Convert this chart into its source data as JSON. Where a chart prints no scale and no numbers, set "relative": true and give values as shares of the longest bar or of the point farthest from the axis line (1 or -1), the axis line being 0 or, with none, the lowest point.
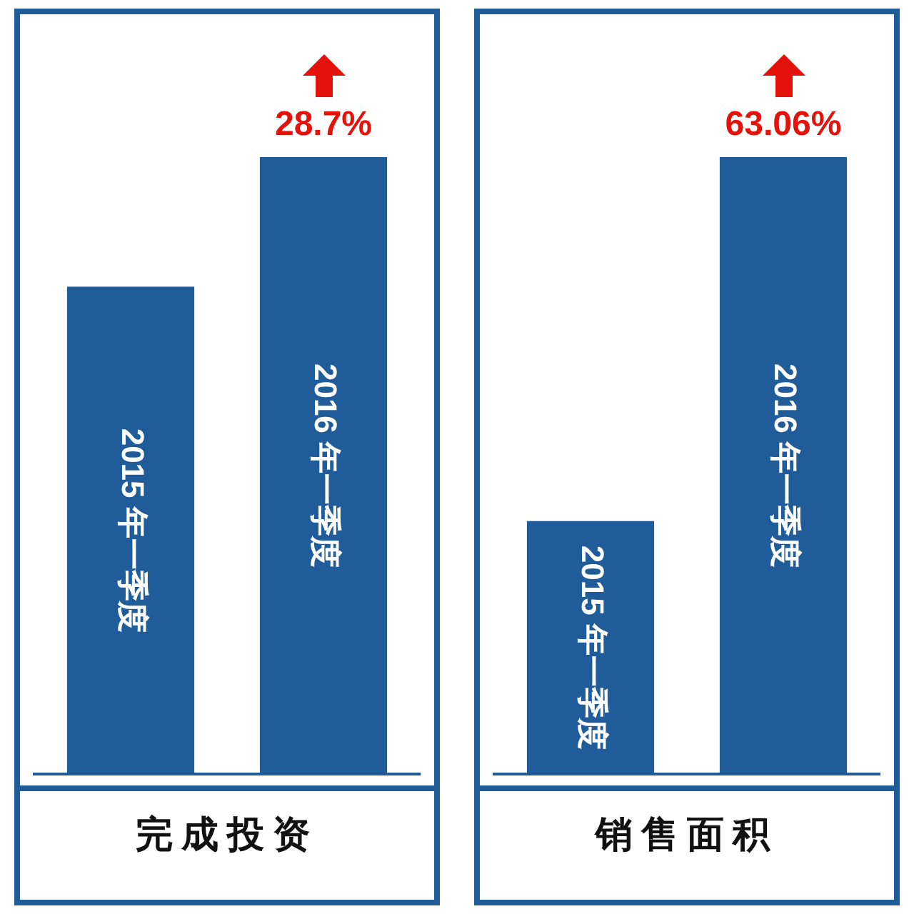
{
  "chart_data": [
    {
      "type": "bar",
      "title": "完成投资",
      "categories": [
        "2015 年一季度",
        "2016 年一季度"
      ],
      "values": [
        0.79,
        1
      ],
      "color": "#1f5c99",
      "relative": true,
      "annotations": [
        {
          "text": "28.7%",
          "x": "2016 年一季度",
          "y": 1
        }
      ]
    },
    {
      "type": "bar",
      "title": "销售面积",
      "categories": [
        "2015 年一季度",
        "2016 年一季度"
      ],
      "values": [
        0.41,
        1
      ],
      "color": "#1f5c99",
      "relative": true,
      "annotations": [
        {
          "text": "63.06%",
          "x": "2016 年一季度",
          "y": 1
        }
      ]
    }
  ]
}
